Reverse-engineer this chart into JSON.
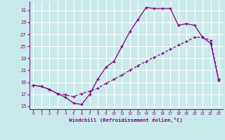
{
  "xlabel": "Windchill (Refroidissement éolien,°C)",
  "background_color": "#c8eaea",
  "grid_color": "#ffffff",
  "line_color": "#800080",
  "xlim": [
    -0.5,
    23.5
  ],
  "ylim": [
    14.5,
    32.5
  ],
  "yticks": [
    15,
    17,
    19,
    21,
    23,
    25,
    27,
    29,
    31
  ],
  "xticks": [
    0,
    1,
    2,
    3,
    4,
    5,
    6,
    7,
    8,
    9,
    10,
    11,
    12,
    13,
    14,
    15,
    16,
    17,
    18,
    19,
    20,
    21,
    22,
    23
  ],
  "series_solid_x": [
    0,
    1,
    2,
    3,
    4,
    5,
    6,
    7,
    8,
    9,
    10,
    11,
    12,
    13,
    14,
    15,
    16,
    17,
    18,
    19,
    20,
    21,
    22,
    23
  ],
  "series_solid_y": [
    18.5,
    18.3,
    17.8,
    17.1,
    16.5,
    15.5,
    15.3,
    17.0,
    19.5,
    21.5,
    22.5,
    25.0,
    27.5,
    29.5,
    31.5,
    31.3,
    31.3,
    31.3,
    28.5,
    28.8,
    28.5,
    26.5,
    25.5,
    19.3
  ],
  "series_dashed_x": [
    0,
    1,
    2,
    3,
    4,
    5,
    6,
    7,
    8,
    9,
    10,
    11,
    12,
    13,
    14,
    15,
    16,
    17,
    18,
    19,
    20,
    21,
    22,
    23
  ],
  "series_dashed_y": [
    18.5,
    18.3,
    17.8,
    17.1,
    16.9,
    16.6,
    17.1,
    17.5,
    18.0,
    18.8,
    19.5,
    20.2,
    21.0,
    21.8,
    22.5,
    23.2,
    23.8,
    24.5,
    25.2,
    25.8,
    26.5,
    26.5,
    26.0,
    19.5
  ],
  "marker": "+"
}
